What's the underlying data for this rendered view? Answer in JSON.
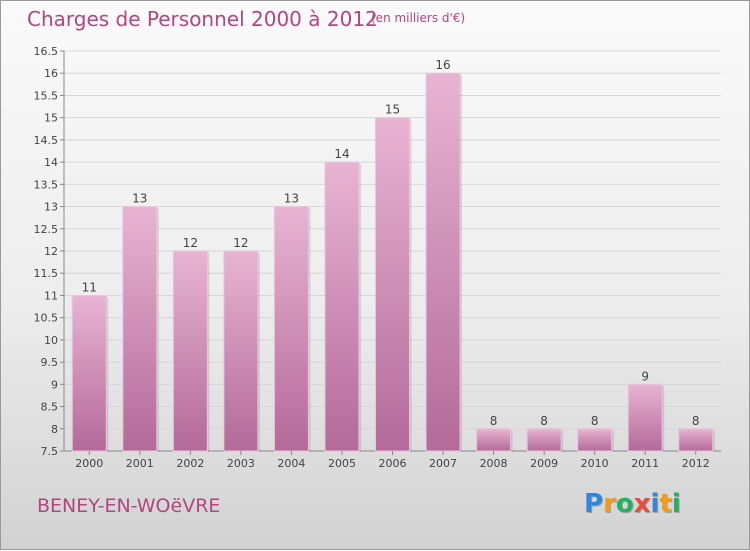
{
  "title": "Charges de Personnel 2000 à 2012",
  "subtitle": "(en milliers d'€)",
  "commune": "BENEY-EN-WOëVRE",
  "logo": {
    "text": "Proxiti",
    "letters": [
      "P",
      "r",
      "o",
      "x",
      "i",
      "t",
      "i"
    ],
    "colors": [
      "#2e86de",
      "#f39c12",
      "#27ae60",
      "#e74c3c",
      "#2e86de",
      "#f39c12",
      "#27ae60"
    ]
  },
  "colors": {
    "bar_light": "#e8b4d2",
    "bar_dark": "#b36a98",
    "text_accent": "#b0477f"
  },
  "chart_data": {
    "type": "bar",
    "categories": [
      "2000",
      "2001",
      "2002",
      "2003",
      "2004",
      "2005",
      "2006",
      "2007",
      "2008",
      "2009",
      "2010",
      "2011",
      "2012"
    ],
    "values": [
      11,
      13,
      12,
      12,
      13,
      14,
      15,
      16,
      8,
      8,
      8,
      9,
      8
    ],
    "data_labels": [
      "11",
      "13",
      "12",
      "12",
      "13",
      "14",
      "15",
      "16",
      "8",
      "8",
      "8",
      "9",
      "8"
    ],
    "yticks": [
      7.5,
      8,
      8.5,
      9,
      9.5,
      10,
      10.5,
      11,
      11.5,
      12,
      12.5,
      13,
      13.5,
      14,
      14.5,
      15,
      15.5,
      16,
      16.5
    ],
    "ytick_labels": [
      "7.5",
      "8",
      "8.5",
      "9",
      "9.5",
      "10",
      "10.5",
      "11",
      "11.5",
      "12",
      "12.5",
      "13",
      "13.5",
      "14",
      "14.5",
      "15",
      "15.5",
      "16",
      "16.5"
    ],
    "ylim": [
      7.5,
      16.5
    ],
    "grid": true
  }
}
